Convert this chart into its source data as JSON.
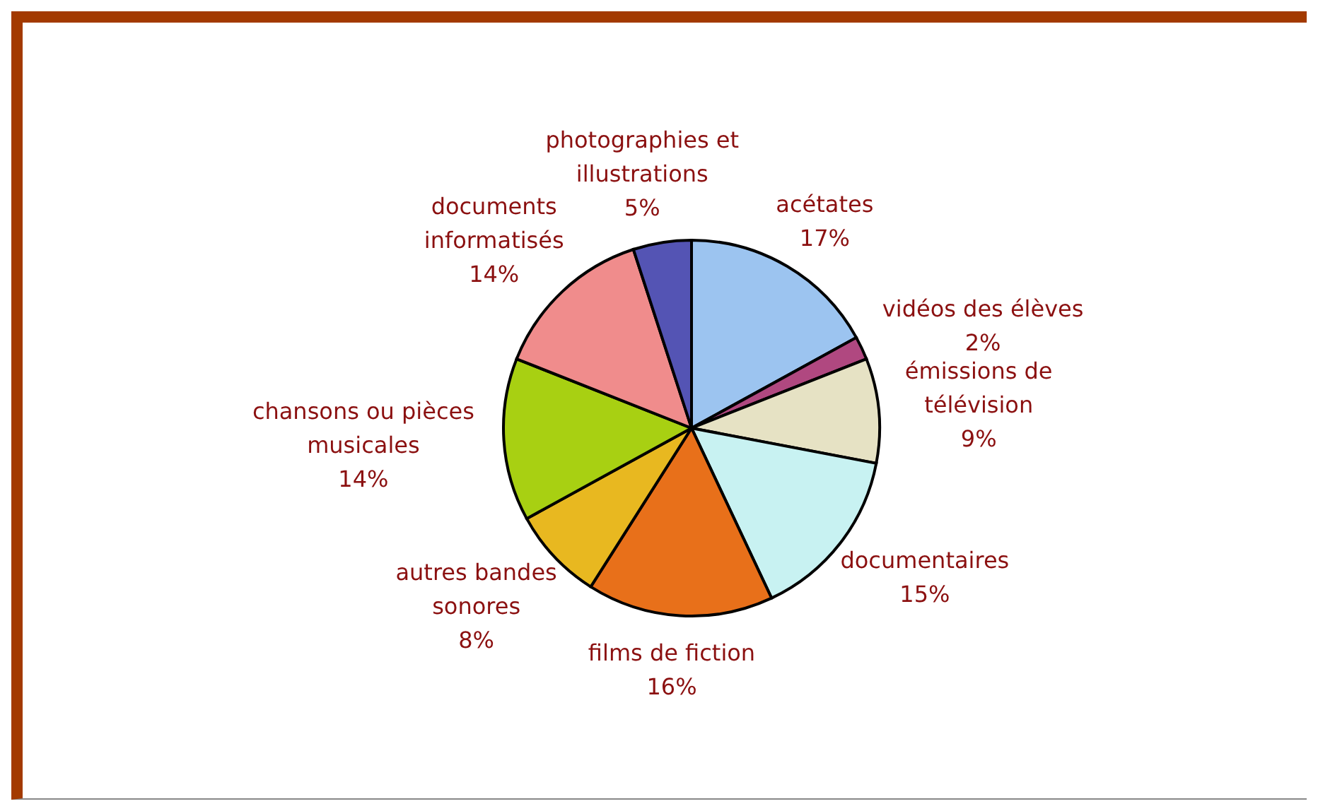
{
  "chart_data": {
    "type": "pie",
    "categories": [
      "acétates",
      "vidéos des élèves",
      "émissions de télévision",
      "documentaires",
      "films de fiction",
      "autres bandes sonores",
      "chansons ou pièces musicales",
      "documents informatisés",
      "photographies et illustrations"
    ],
    "values": [
      17,
      2,
      9,
      15,
      16,
      8,
      14,
      14,
      5
    ],
    "colors": [
      "#9cc4f0",
      "#b04880",
      "#e6e2c4",
      "#c8f2f2",
      "#e8701a",
      "#e8b820",
      "#a8d012",
      "#f08c8c",
      "#5454b4"
    ],
    "value_labels": [
      "17%",
      "2%",
      "9%",
      "15%",
      "16%",
      "8%",
      "14%",
      "14%",
      "5%"
    ],
    "legend": false
  }
}
